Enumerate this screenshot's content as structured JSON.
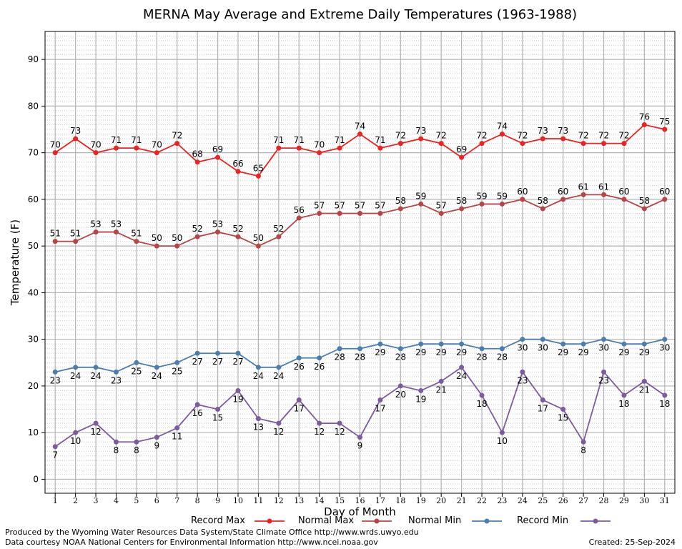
{
  "chart_data": {
    "type": "line",
    "title": "MERNA May Average and Extreme Daily Temperatures (1963-1988)",
    "xlabel": "Day of Month",
    "ylabel": "Temperature (F)",
    "x": [
      1,
      2,
      3,
      4,
      5,
      6,
      7,
      8,
      9,
      10,
      11,
      12,
      13,
      14,
      15,
      16,
      17,
      18,
      19,
      20,
      21,
      22,
      23,
      24,
      25,
      26,
      27,
      28,
      29,
      30,
      31
    ],
    "ylim": [
      -3,
      96
    ],
    "yticks": [
      0,
      10,
      20,
      30,
      40,
      50,
      60,
      70,
      80,
      90
    ],
    "grid": true,
    "legend_position": "bottom",
    "series": [
      {
        "name": "Record Max",
        "color": "#ee2222",
        "label_pos": "above",
        "values": [
          70,
          73,
          70,
          71,
          71,
          70,
          72,
          68,
          69,
          66,
          65,
          71,
          71,
          70,
          71,
          74,
          71,
          72,
          73,
          72,
          69,
          72,
          74,
          72,
          73,
          73,
          72,
          72,
          72,
          76,
          75
        ]
      },
      {
        "name": "Normal Max",
        "color": "#b84448",
        "label_pos": "above",
        "values": [
          51,
          51,
          53,
          53,
          51,
          50,
          50,
          52,
          53,
          52,
          50,
          52,
          56,
          57,
          57,
          57,
          57,
          58,
          59,
          57,
          58,
          59,
          59,
          60,
          58,
          60,
          61,
          61,
          60,
          58,
          60
        ]
      },
      {
        "name": "Normal Min",
        "color": "#4a7eb0",
        "label_pos": "below",
        "values": [
          23,
          24,
          24,
          23,
          25,
          24,
          25,
          27,
          27,
          27,
          24,
          24,
          26,
          26,
          28,
          28,
          29,
          28,
          29,
          29,
          29,
          28,
          28,
          30,
          30,
          29,
          29,
          30,
          29,
          29,
          30
        ]
      },
      {
        "name": "Record Min",
        "color": "#7e5a9e",
        "label_pos": "below",
        "values": [
          7,
          10,
          12,
          8,
          8,
          9,
          11,
          16,
          15,
          19,
          13,
          12,
          17,
          12,
          12,
          9,
          17,
          20,
          19,
          21,
          24,
          18,
          10,
          23,
          17,
          15,
          8,
          23,
          18,
          21,
          18
        ]
      }
    ]
  },
  "footer": {
    "produced_by": "Produced by the Wyoming Water Resources Data System/State Climate Office http://www.wrds.uwyo.edu",
    "courtesy": "Data courtesy NOAA National Centers for Environmental Information http://www.ncei.noaa.gov",
    "created": "Created: 25-Sep-2024"
  }
}
